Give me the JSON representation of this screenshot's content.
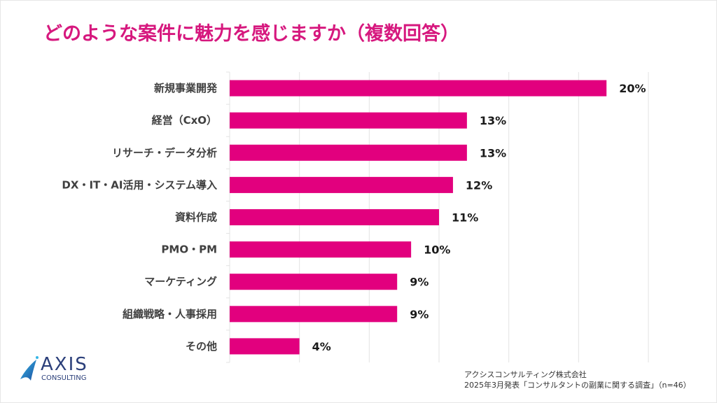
{
  "title": "どのような案件に魅力を感じますか（複数回答）",
  "colors": {
    "title": "#d6187e",
    "bar": "#e2007e",
    "gridline": "#e3e3e3",
    "label": "#404040",
    "value_label": "#1a1a1a"
  },
  "chart_data": {
    "type": "bar",
    "orientation": "horizontal",
    "title": "どのような案件に魅力を感じますか（複数回答）",
    "xlabel": "",
    "ylabel": "",
    "categories": [
      "新規事業開発",
      "経営（CxO）",
      "リサーチ・データ分析",
      "DX・IT・AI活用・システム導入",
      "資料作成",
      "PMO・PM",
      "マーケティング",
      "組織戦略・人事採用",
      "その他"
    ],
    "values": [
      20,
      13,
      13,
      12,
      11,
      10,
      9,
      9,
      4
    ],
    "value_labels": [
      "20%",
      "13%",
      "13%",
      "12%",
      "11%",
      "10%",
      "9%",
      "9%",
      "4%"
    ],
    "axis_values_estimated": [
      27,
      17,
      17,
      16,
      15,
      13,
      12,
      12,
      5
    ],
    "xlim": [
      0,
      30
    ],
    "x_gridline_step": 5,
    "x_tick_labels_shown": false,
    "grid": true,
    "legend": "none",
    "unit": "%"
  },
  "logo": {
    "name": "AXIS",
    "sub": "CONSULTING"
  },
  "source": {
    "line1": "アクシスコンサルティング株式会社",
    "line2": "2025年3月発表「コンサルタントの副業に関する調査」（n=46）"
  }
}
